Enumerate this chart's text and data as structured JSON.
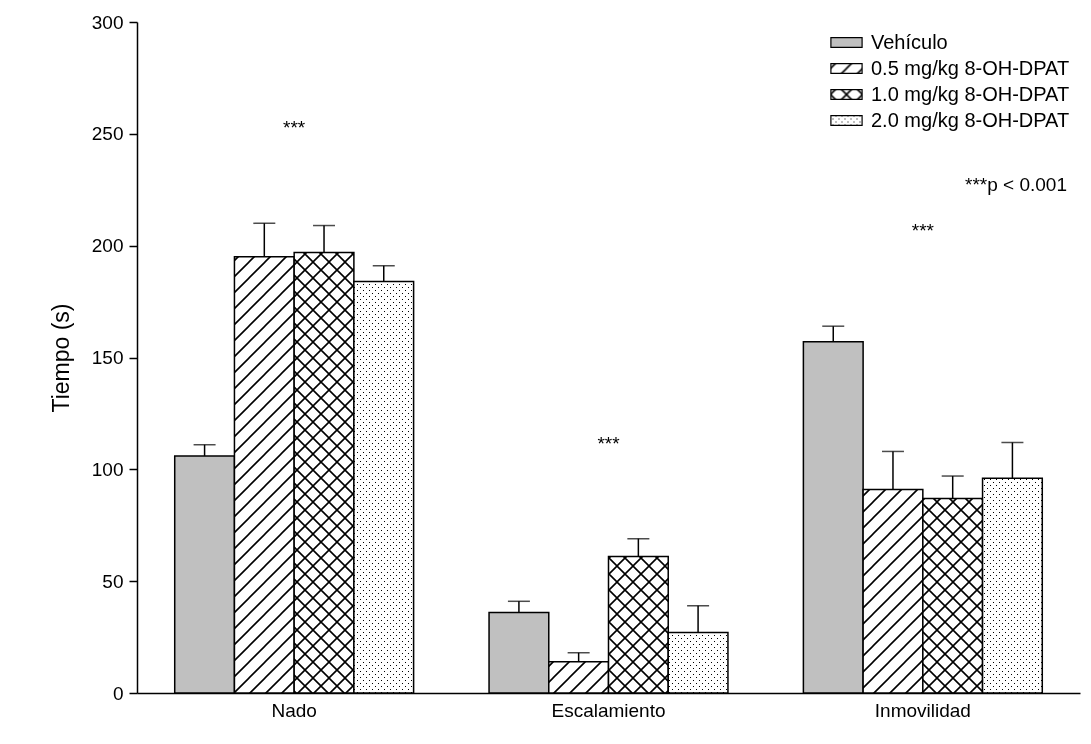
{
  "chart_data": {
    "type": "bar",
    "ylabel": "Tiempo (s)",
    "categories": [
      "Nado",
      "Escalamiento",
      "Inmovilidad"
    ],
    "series": [
      {
        "name": "Vehículo",
        "color": "#c0c0c0",
        "values": [
          106,
          36,
          157
        ],
        "errors": [
          5,
          5,
          7
        ]
      },
      {
        "name": "0.5 mg/kg 8-OH-DPAT",
        "color": "#000000",
        "values": [
          195,
          14,
          91
        ],
        "errors": [
          15,
          4,
          17
        ]
      },
      {
        "name": "1.0 mg/kg 8-OH-DPAT",
        "color": "#000000",
        "values": [
          197,
          61,
          87
        ],
        "errors": [
          12,
          8,
          10
        ]
      },
      {
        "name": "2.0 mg/kg 8-OH-DPAT",
        "color": "#000000",
        "values": [
          184,
          27,
          96
        ],
        "errors": [
          7,
          12,
          16
        ]
      }
    ],
    "ylim": [
      0,
      300
    ],
    "yticks": [
      0,
      50,
      100,
      150,
      200,
      250,
      300
    ],
    "grid": false,
    "legend": "top right",
    "annotations": [
      "***",
      "***",
      "***",
      "***p < 0.001"
    ]
  }
}
